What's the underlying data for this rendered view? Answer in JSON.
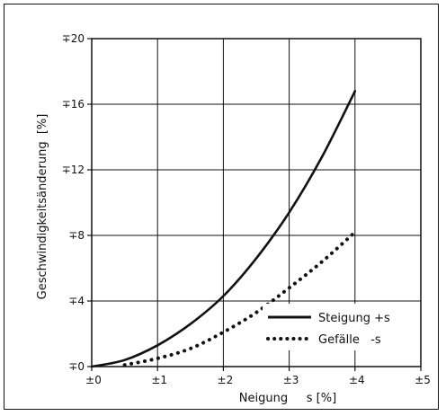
{
  "chart_data": {
    "type": "line",
    "xlabel": "Neigung     s [%]",
    "ylabel": "Geschwindigkeitsänderung  [%]",
    "xlim": [
      0,
      5
    ],
    "ylim": [
      0,
      20
    ],
    "x_ticks": [
      0,
      1,
      2,
      3,
      4,
      5
    ],
    "x_tick_labels": [
      "±0",
      "±1",
      "±2",
      "±3",
      "±4",
      "±5"
    ],
    "y_ticks": [
      0,
      4,
      8,
      12,
      16,
      20
    ],
    "y_tick_labels": [
      "∓0",
      "∓4",
      "∓8",
      "∓12",
      "∓16",
      "∓20"
    ],
    "grid": true,
    "legend_position": "bottom-right",
    "series": [
      {
        "name": "Steigung +s",
        "style": "solid",
        "color": "#111111",
        "x": [
          0,
          0.5,
          1,
          1.5,
          2,
          2.5,
          3,
          3.5,
          4
        ],
        "y": [
          0,
          0.4,
          1.3,
          2.6,
          4.3,
          6.6,
          9.4,
          12.8,
          16.8
        ]
      },
      {
        "name": "Gefälle   -s",
        "style": "dotted",
        "color": "#111111",
        "x": [
          0.5,
          1,
          1.5,
          2,
          2.5,
          3,
          3.5,
          4
        ],
        "y": [
          0.1,
          0.5,
          1.1,
          2.1,
          3.3,
          4.8,
          6.4,
          8.2
        ]
      }
    ]
  }
}
